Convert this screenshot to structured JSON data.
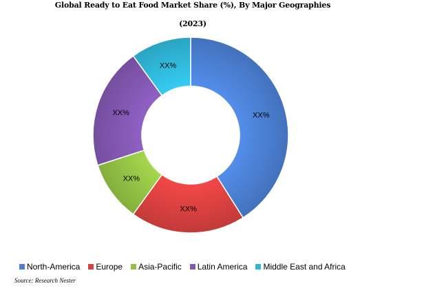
{
  "chart_data": {
    "type": "pie",
    "variant": "donut",
    "title": "Global Ready to Eat Food Market Share (%), By Major Geographies",
    "subtitle": "(2023)",
    "slice_labels_shown": "XX%",
    "legend_placement": "bottom",
    "slices": [
      {
        "name": "North-America",
        "value": 41,
        "label": "XX%",
        "color": "#4a7fd1"
      },
      {
        "name": "Europe",
        "value": 19,
        "label": "XX%",
        "color": "#d9403f"
      },
      {
        "name": "Asia-Pacific",
        "value": 10,
        "label": "XX%",
        "color": "#92c144"
      },
      {
        "name": "Latin America",
        "value": 20,
        "label": "XX%",
        "color": "#8157b0"
      },
      {
        "name": "Middle East and Africa",
        "value": 10,
        "label": "XX%",
        "color": "#2fb6d8"
      }
    ]
  },
  "source": "Source: Research Nester"
}
